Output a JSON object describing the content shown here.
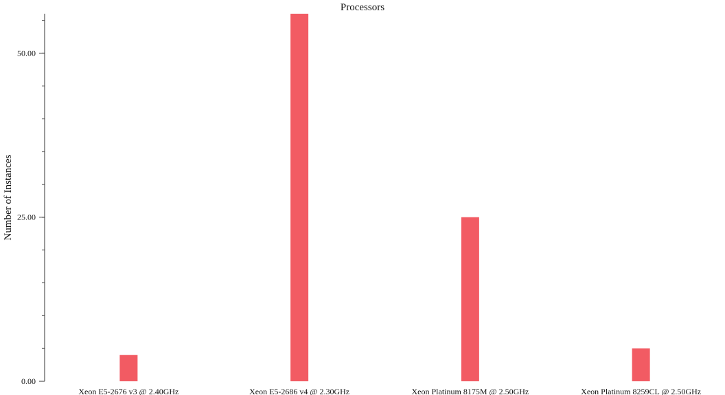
{
  "chart_data": {
    "type": "bar",
    "title": "Processors",
    "xlabel": "",
    "ylabel": "Number of Instances",
    "categories": [
      "Xeon E5-2676 v3 @ 2.40GHz",
      "Xeon E5-2686 v4 @ 2.30GHz",
      "Xeon Platinum 8175M @ 2.50GHz",
      "Xeon Platinum 8259CL @ 2.50GHz"
    ],
    "values": [
      4,
      56,
      25,
      5
    ],
    "ylim": [
      0,
      56
    ],
    "yticks": [
      0,
      25,
      50
    ],
    "ytick_labels": [
      "0.00",
      "25.00",
      "50.00"
    ],
    "minor_tick_step": 5,
    "grid": false,
    "bar_color": "#f25b63"
  }
}
